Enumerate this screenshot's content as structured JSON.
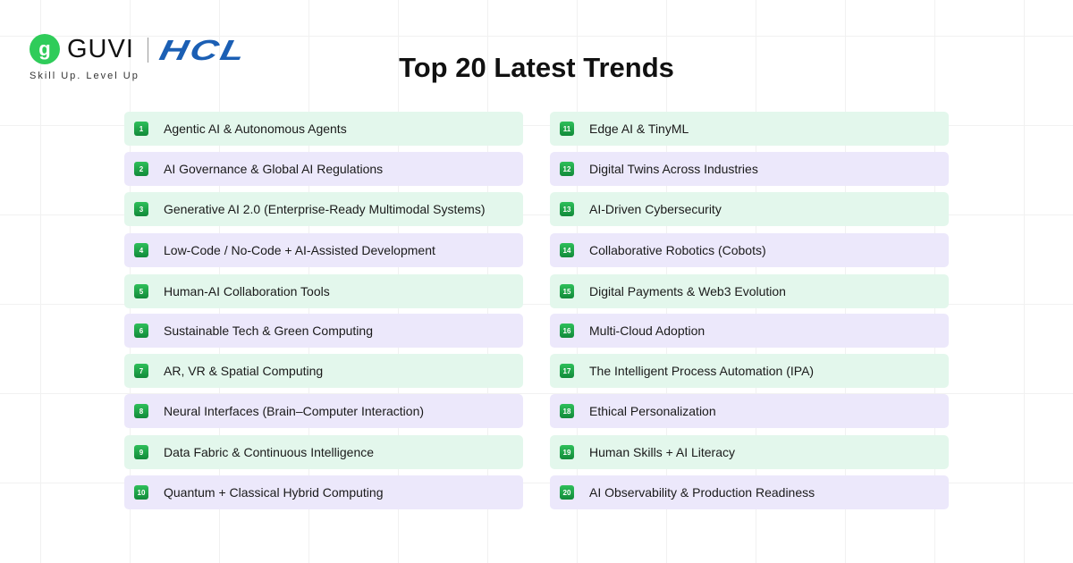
{
  "header": {
    "guvi": "GUVI",
    "hcl": "HCL",
    "tagline": "Skill Up. Level Up",
    "title": "Top 20 Latest Trends"
  },
  "colors": {
    "green_row": "#e3f7ec",
    "purple_row": "#ece8fb",
    "badge": "#1ea84a",
    "hcl_blue": "#1b5fb4"
  },
  "trends": [
    "Agentic AI & Autonomous Agents",
    "AI Governance & Global AI Regulations",
    "Generative AI 2.0 (Enterprise-Ready Multimodal Systems)",
    "Low-Code / No-Code + AI-Assisted Development",
    "Human-AI Collaboration Tools",
    "Sustainable Tech & Green Computing",
    "AR, VR & Spatial Computing",
    "Neural Interfaces (Brain–Computer Interaction)",
    "Data Fabric & Continuous Intelligence",
    "Quantum + Classical Hybrid Computing",
    "Edge AI & TinyML",
    "Digital Twins Across Industries",
    "AI-Driven Cybersecurity",
    "Collaborative Robotics (Cobots)",
    "Digital Payments & Web3 Evolution",
    "Multi-Cloud Adoption",
    "The Intelligent Process Automation (IPA)",
    "Ethical Personalization",
    "Human Skills + AI Literacy",
    "AI Observability & Production Readiness"
  ]
}
